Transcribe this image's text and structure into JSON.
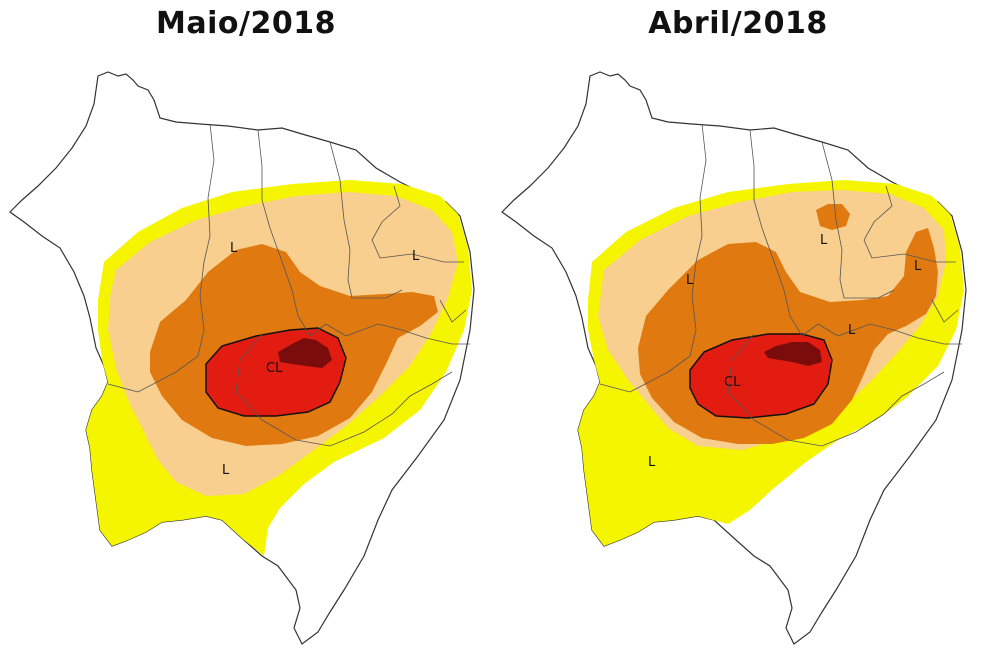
{
  "colors": {
    "background": "#ffffff",
    "outline": "#333333",
    "state_border": "#555555",
    "L_outer": "#f5f500",
    "L_inner": "#f8cf8e",
    "M": "#e07a10",
    "S": "#e31c12",
    "E": "#7b0c0c"
  },
  "panels": [
    {
      "title": "Maio/2018",
      "labels": {
        "l_west": "L",
        "l_south": "L",
        "l_east": "L",
        "core": "CL"
      }
    },
    {
      "title": "Abril/2018",
      "labels": {
        "l_west": "L",
        "l_south": "L",
        "l_north": "L",
        "l_east": "L",
        "l_mid": "L",
        "core": "CL"
      }
    }
  ]
}
